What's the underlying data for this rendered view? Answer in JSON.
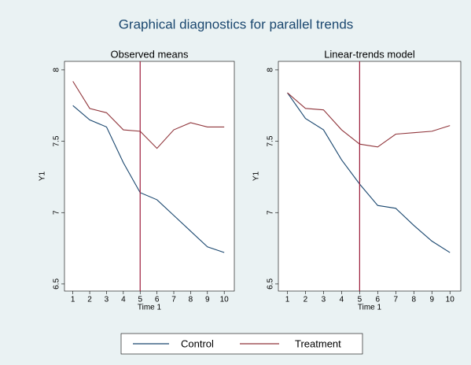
{
  "title": "Graphical diagnostics for parallel trends",
  "chart_data": [
    {
      "type": "line",
      "title": "Observed means",
      "xlabel": "Time 1",
      "ylabel": "Y1",
      "x": [
        1,
        2,
        3,
        4,
        5,
        6,
        7,
        8,
        9,
        10
      ],
      "series": [
        {
          "name": "Control",
          "color": "#1a476f",
          "values": [
            7.75,
            7.65,
            7.6,
            7.35,
            7.14,
            7.09,
            6.98,
            6.87,
            6.76,
            6.72
          ]
        },
        {
          "name": "Treatment",
          "color": "#90353b",
          "values": [
            7.92,
            7.73,
            7.7,
            7.58,
            7.57,
            7.45,
            7.58,
            7.63,
            7.6,
            7.6
          ]
        }
      ],
      "xline": 5,
      "xline_color": "#9b1b3a",
      "xlim": [
        0.5,
        10.6
      ],
      "xticks": [
        1,
        2,
        3,
        4,
        5,
        6,
        7,
        8,
        9,
        10
      ],
      "ylim": [
        6.45,
        8.06
      ],
      "yticks": [
        6.5,
        7,
        7.5,
        8
      ],
      "grid": false
    },
    {
      "type": "line",
      "title": "Linear-trends model",
      "xlabel": "Time 1",
      "ylabel": "Y1",
      "x": [
        1,
        2,
        3,
        4,
        5,
        6,
        7,
        8,
        9,
        10
      ],
      "series": [
        {
          "name": "Control",
          "color": "#1a476f",
          "values": [
            7.84,
            7.66,
            7.58,
            7.37,
            7.2,
            7.05,
            7.03,
            6.91,
            6.8,
            6.72
          ]
        },
        {
          "name": "Treatment",
          "color": "#90353b",
          "values": [
            7.84,
            7.73,
            7.72,
            7.58,
            7.48,
            7.46,
            7.55,
            7.56,
            7.57,
            7.61
          ]
        }
      ],
      "xline": 5,
      "xline_color": "#9b1b3a",
      "xlim": [
        0.5,
        10.6
      ],
      "xticks": [
        1,
        2,
        3,
        4,
        5,
        6,
        7,
        8,
        9,
        10
      ],
      "ylim": [
        6.45,
        8.06
      ],
      "yticks": [
        6.5,
        7,
        7.5,
        8
      ],
      "grid": false
    }
  ],
  "legend": {
    "position": "bottom"
  }
}
